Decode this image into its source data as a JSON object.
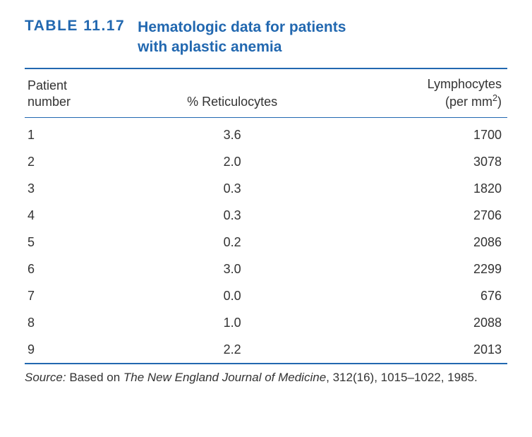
{
  "table": {
    "label": "TABLE 11.17",
    "caption_line1": "Hematologic data for patients",
    "caption_line2": "with aplastic anemia",
    "label_color": "#2268b0",
    "caption_color": "#2268b0",
    "rule_color": "#2268b0",
    "columns": {
      "col1_line1": "Patient",
      "col1_line2": "number",
      "col2": "% Reticulocytes",
      "col3_line1": "Lymphocytes",
      "col3_line2_prefix": "(per mm",
      "col3_line2_sup": "2",
      "col3_line2_suffix": ")"
    },
    "rows": [
      {
        "num": "1",
        "retic": "3.6",
        "lymph": "1700"
      },
      {
        "num": "2",
        "retic": "2.0",
        "lymph": "3078"
      },
      {
        "num": "3",
        "retic": "0.3",
        "lymph": "1820"
      },
      {
        "num": "4",
        "retic": "0.3",
        "lymph": "2706"
      },
      {
        "num": "5",
        "retic": "0.2",
        "lymph": "2086"
      },
      {
        "num": "6",
        "retic": "3.0",
        "lymph": "2299"
      },
      {
        "num": "7",
        "retic": "0.0",
        "lymph": "676"
      },
      {
        "num": "8",
        "retic": "1.0",
        "lymph": "2088"
      },
      {
        "num": "9",
        "retic": "2.2",
        "lymph": "2013"
      }
    ],
    "source": {
      "label": "Source:",
      "prefix": " Based on ",
      "journal": "The New England Journal of Medicine",
      "suffix": ", 312(16), 1015–1022, 1985."
    },
    "fontsize_header": 21,
    "fontsize_body": 18,
    "fontsize_source": 17,
    "background_color": "#ffffff",
    "text_color": "#333333"
  }
}
